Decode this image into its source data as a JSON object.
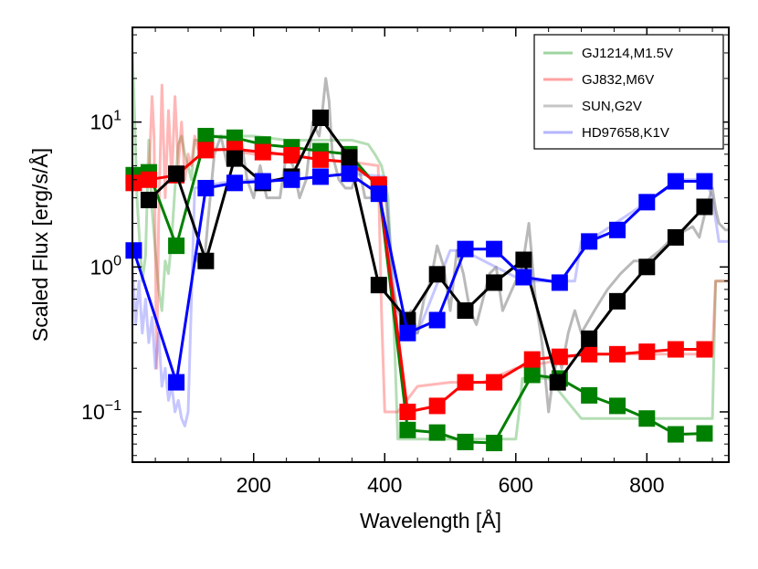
{
  "chart_data": {
    "type": "line",
    "yscale": "log",
    "xlim": [
      15,
      925
    ],
    "ylim": [
      0.045,
      45
    ],
    "xlabel": "Wavelength [Å]",
    "ylabel": "Scaled Flux [erg/s/Å]",
    "xticks": [
      {
        "value": 200,
        "label": "200"
      },
      {
        "value": 400,
        "label": "400"
      },
      {
        "value": 600,
        "label": "600"
      },
      {
        "value": 800,
        "label": "800"
      }
    ],
    "yticks": [
      {
        "value": 0.1,
        "base": "10",
        "exp": "−1"
      },
      {
        "value": 1,
        "base": "10",
        "exp": "0"
      },
      {
        "value": 10,
        "base": "10",
        "exp": "1"
      }
    ],
    "legend": [
      {
        "label": "GJ1214,M1.5V",
        "color": "#2ca02c"
      },
      {
        "label": "GJ832,M6V",
        "color": "#ff3030"
      },
      {
        "label": "SUN,G2V",
        "color": "#808080"
      },
      {
        "label": "HD97658,K1V",
        "color": "#5b5bff"
      }
    ],
    "background_series": [
      {
        "name": "GJ1214,M1.5V",
        "color": "#2ca02c",
        "opacity": 0.35,
        "x": [
          15,
          18,
          22,
          26,
          30,
          35,
          40,
          45,
          50,
          55,
          60,
          65,
          70,
          75,
          80,
          85,
          90,
          95,
          100,
          105,
          110,
          115,
          130,
          150,
          200,
          250,
          300,
          350,
          375,
          385,
          395,
          400,
          405,
          410,
          415,
          420,
          600,
          605,
          610,
          650,
          700,
          900,
          905,
          910,
          925
        ],
        "y": [
          30,
          12,
          3,
          1.5,
          0.8,
          1.2,
          7.5,
          2.5,
          1.3,
          0.7,
          0.5,
          1.1,
          0.9,
          1.6,
          3.5,
          7,
          8,
          6,
          5,
          4,
          7.5,
          7.5,
          8,
          8,
          8,
          7.5,
          7.5,
          7.5,
          7,
          6,
          5,
          4,
          3,
          1,
          0.3,
          0.065,
          0.065,
          0.1,
          0.17,
          0.17,
          0.09,
          0.09,
          0.8,
          0.8,
          0.8
        ]
      },
      {
        "name": "GJ832,M6V",
        "color": "#ff3030",
        "opacity": 0.35,
        "x": [
          15,
          25,
          35,
          40,
          45,
          48,
          52,
          55,
          60,
          65,
          70,
          75,
          80,
          85,
          90,
          95,
          100,
          105,
          110,
          115,
          150,
          200,
          250,
          300,
          350,
          390,
          395,
          400,
          410,
          420,
          450,
          500,
          550,
          600,
          650,
          700,
          900,
          905,
          925
        ],
        "y": [
          4,
          3.5,
          4,
          4,
          15,
          8,
          0.2,
          2,
          18,
          3,
          12,
          4,
          15,
          5,
          10,
          4,
          6,
          5,
          8,
          6.5,
          6.5,
          6,
          6,
          5.5,
          5.3,
          5,
          0.5,
          0.1,
          0.1,
          0.1,
          0.15,
          0.16,
          0.16,
          0.2,
          0.22,
          0.25,
          0.25,
          0.8,
          0.8
        ]
      },
      {
        "name": "HD97658,K1V",
        "color": "#5b5bff",
        "opacity": 0.35,
        "x": [
          15,
          20,
          25,
          30,
          35,
          40,
          45,
          50,
          55,
          60,
          65,
          70,
          75,
          80,
          85,
          90,
          95,
          100,
          110,
          150,
          200,
          250,
          300,
          350,
          400,
          420,
          440,
          450,
          460,
          500,
          520,
          600,
          610,
          620,
          650,
          660,
          690,
          700,
          710,
          800,
          850,
          890,
          900,
          910,
          925
        ],
        "y": [
          1,
          0.4,
          0.8,
          0.35,
          0.6,
          0.3,
          0.45,
          0.2,
          0.35,
          0.15,
          0.2,
          0.12,
          0.15,
          0.1,
          0.12,
          0.09,
          0.08,
          0.1,
          3.5,
          3.8,
          4,
          4,
          4.2,
          4.4,
          4.2,
          0.35,
          0.35,
          0.35,
          0.45,
          1.3,
          1.3,
          0.85,
          0.85,
          0.8,
          0.8,
          0.8,
          0.8,
          1.5,
          1.5,
          2.8,
          4,
          4,
          3,
          1.5,
          1.5
        ]
      },
      {
        "name": "SUN,G2V",
        "color": "#808080",
        "opacity": 0.55,
        "x": [
          110,
          120,
          125,
          130,
          140,
          150,
          160,
          170,
          180,
          190,
          200,
          210,
          220,
          230,
          240,
          250,
          260,
          270,
          280,
          290,
          300,
          305,
          310,
          315,
          320,
          330,
          340,
          350,
          360,
          370,
          380,
          390,
          400,
          405,
          410,
          420,
          430,
          440,
          450,
          460,
          470,
          480,
          490,
          500,
          505,
          510,
          520,
          530,
          540,
          550,
          560,
          570,
          580,
          600,
          610,
          620,
          630,
          640,
          650,
          655,
          660,
          665,
          670,
          680,
          690,
          700,
          720,
          740,
          760,
          780,
          800,
          820,
          840,
          860,
          870,
          880,
          890,
          900,
          905,
          910,
          920,
          925
        ],
        "y": [
          1.2,
          1.0,
          1.1,
          2,
          6,
          8,
          5,
          5,
          8,
          4,
          3,
          5,
          3,
          3,
          3,
          6,
          5,
          3,
          4,
          10,
          8,
          12,
          20,
          14,
          6,
          4,
          3.5,
          3.5,
          5,
          3,
          3,
          3.5,
          4,
          2,
          0.8,
          0.5,
          0.4,
          0.5,
          0.35,
          0.6,
          0.8,
          1.4,
          1,
          0.5,
          0.8,
          1.3,
          0.9,
          0.5,
          0.4,
          0.6,
          0.9,
          1.0,
          0.5,
          0.8,
          1,
          2,
          0.6,
          0.3,
          0.1,
          0.15,
          0.2,
          0.25,
          0.2,
          0.35,
          0.5,
          0.35,
          0.5,
          0.7,
          0.9,
          1.1,
          1.1,
          1.3,
          1.6,
          1.8,
          1.9,
          1.6,
          2.5,
          3.5,
          2.5,
          2.0,
          1.8,
          1.8
        ]
      }
    ],
    "series": [
      {
        "name": "GJ1214,M1.5V",
        "color": "#008000",
        "x": [
          17,
          40,
          82,
          127,
          171,
          214,
          258,
          302,
          346,
          391,
          435,
          480,
          523,
          567,
          625,
          667,
          712,
          755,
          800,
          844,
          888
        ],
        "y": [
          4.3,
          4.5,
          1.4,
          8.0,
          7.8,
          7.0,
          6.7,
          6.3,
          6.0,
          3.5,
          0.075,
          0.072,
          0.062,
          0.061,
          0.18,
          0.17,
          0.13,
          0.11,
          0.09,
          0.07,
          0.071
        ]
      },
      {
        "name": "GJ832,M6V",
        "color": "#ff0000",
        "x": [
          17,
          40,
          82,
          127,
          171,
          214,
          258,
          302,
          346,
          391,
          435,
          480,
          523,
          567,
          625,
          667,
          712,
          755,
          800,
          844,
          888
        ],
        "y": [
          3.8,
          4.0,
          4.3,
          6.4,
          6.5,
          6.2,
          5.9,
          5.5,
          5.3,
          3.7,
          0.1,
          0.11,
          0.16,
          0.16,
          0.23,
          0.24,
          0.25,
          0.25,
          0.26,
          0.27,
          0.27
        ]
      },
      {
        "name": "SUN,G2V",
        "color": "#000000",
        "x": [
          40,
          82,
          127,
          171,
          214,
          258,
          302,
          346,
          391,
          435,
          480,
          523,
          567,
          612,
          664,
          712,
          755,
          800,
          844,
          888
        ],
        "y": [
          2.9,
          4.4,
          1.1,
          5.6,
          3.8,
          4.2,
          10.7,
          5.7,
          0.75,
          0.43,
          0.89,
          0.5,
          0.78,
          1.12,
          0.16,
          0.32,
          0.58,
          1.0,
          1.6,
          2.6
        ]
      },
      {
        "name": "HD97658,K1V",
        "color": "#0000ff",
        "x": [
          17,
          82,
          127,
          171,
          214,
          258,
          302,
          346,
          391,
          435,
          480,
          523,
          567,
          612,
          667,
          712,
          755,
          800,
          844,
          888
        ],
        "y": [
          1.3,
          0.16,
          3.5,
          3.8,
          3.9,
          4.0,
          4.2,
          4.4,
          3.2,
          0.35,
          0.43,
          1.33,
          1.33,
          0.85,
          0.78,
          1.5,
          1.8,
          2.8,
          3.9,
          3.9
        ]
      }
    ]
  }
}
